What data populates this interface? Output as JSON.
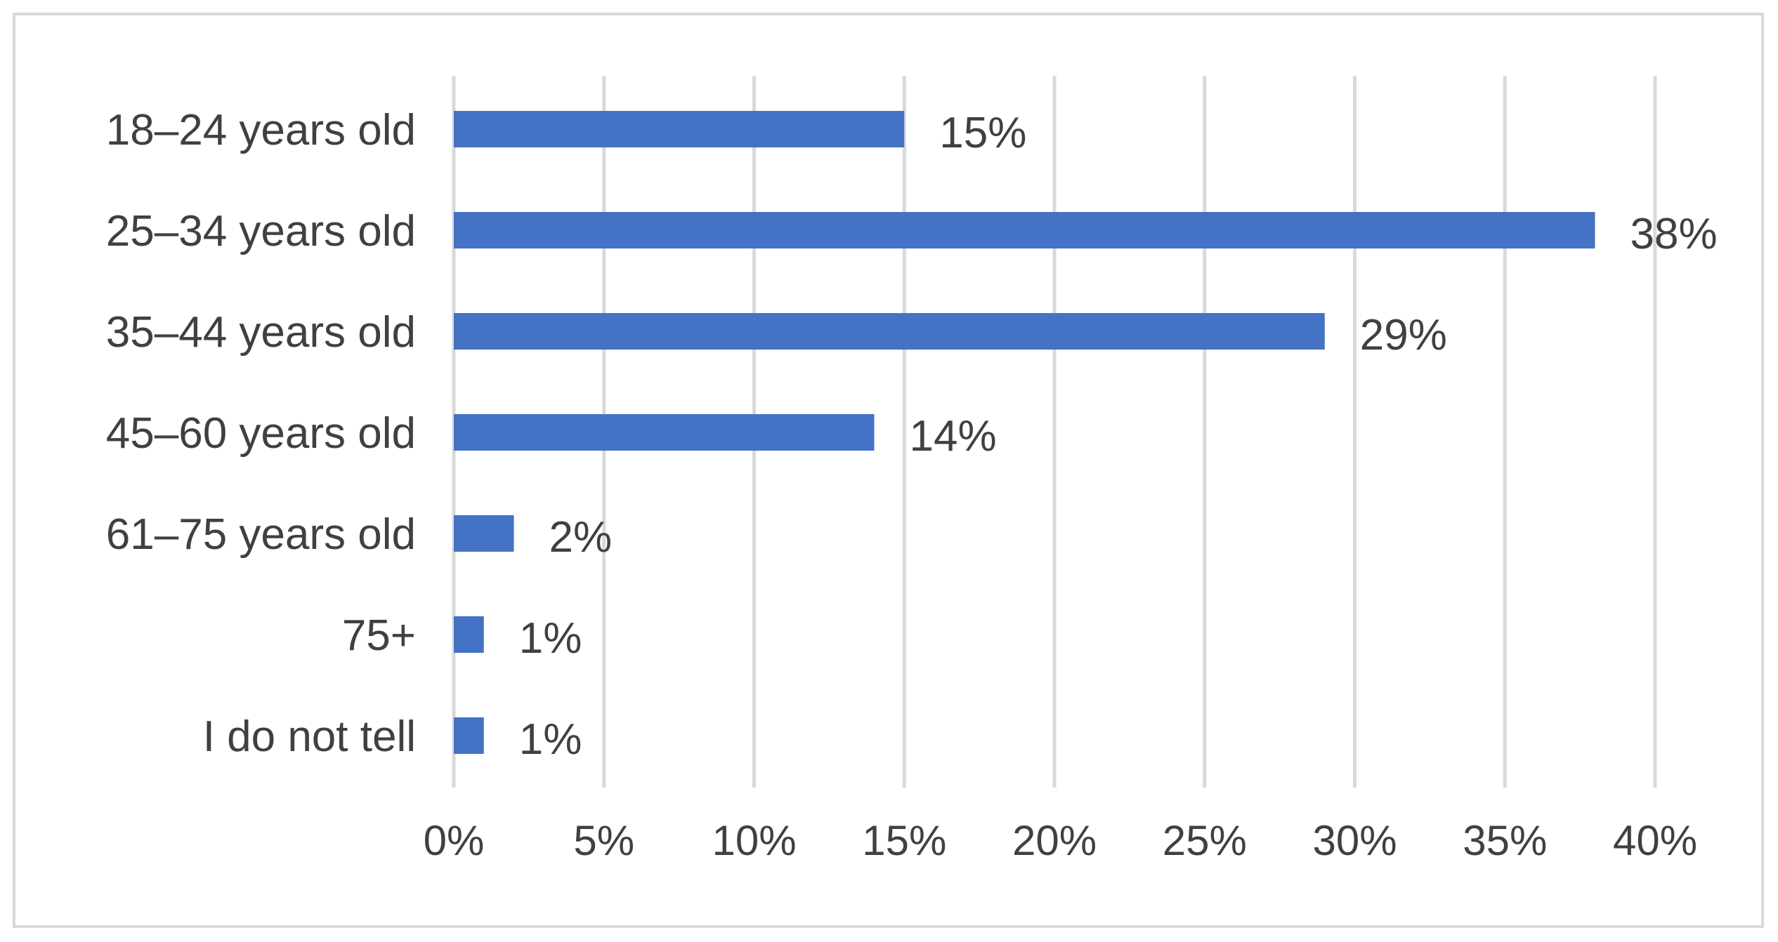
{
  "chart_data": {
    "type": "bar",
    "orientation": "horizontal",
    "categories": [
      "18–24 years old",
      "25–34 years old",
      "35–44 years old",
      "45–60 years old",
      "61–75 years old",
      "75+",
      "I do not tell"
    ],
    "values": [
      15,
      38,
      29,
      14,
      2,
      1,
      1
    ],
    "data_labels": [
      "15%",
      "38%",
      "29%",
      "14%",
      "2%",
      "1%",
      "1%"
    ],
    "xlim": [
      0,
      40
    ],
    "x_ticks": [
      0,
      5,
      10,
      15,
      20,
      25,
      30,
      35,
      40
    ],
    "x_tick_labels": [
      "0%",
      "5%",
      "10%",
      "15%",
      "20%",
      "25%",
      "30%",
      "35%",
      "40%"
    ],
    "grid": true,
    "legend": "none",
    "bar_color": "#4472c4",
    "title": "",
    "xlabel": "",
    "ylabel": ""
  }
}
